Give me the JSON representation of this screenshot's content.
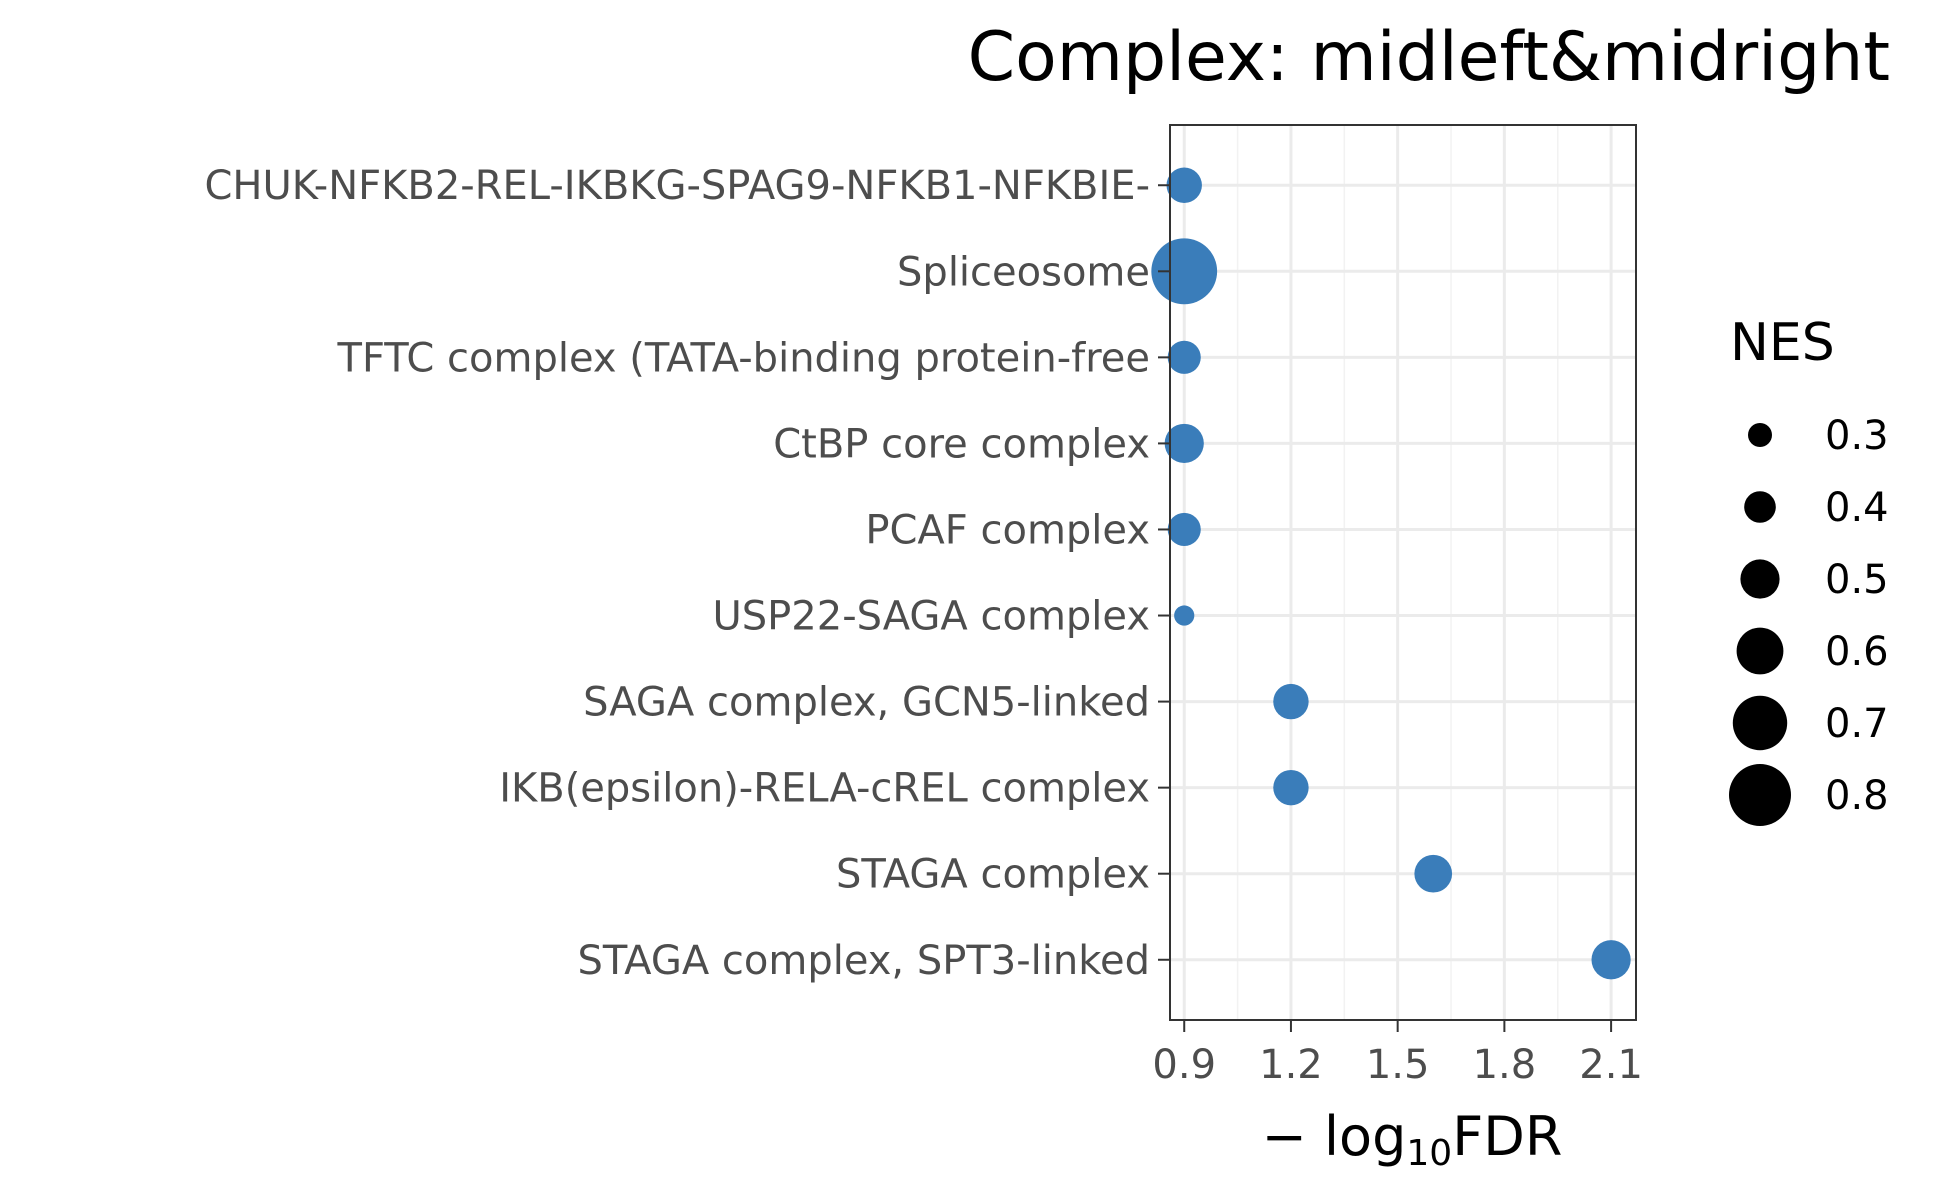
{
  "chart_data": {
    "type": "scatter",
    "title": "Complex: midleft&midright",
    "xlabel": {
      "prefix": "− log",
      "subscript": "10",
      "suffix": "FDR"
    },
    "ylabel": "",
    "xlim": [
      0.86,
      2.17
    ],
    "x_ticks": [
      0.9,
      1.2,
      1.5,
      1.8,
      2.1
    ],
    "x_tick_labels": [
      "0.9",
      "1.2",
      "1.5",
      "1.8",
      "2.1"
    ],
    "grid": true,
    "point_color": "#3A7DBA",
    "categories": [
      "CHUK-NFKB2-REL-IKBKG-SPAG9-NFKB1-NFKBIE-",
      "Spliceosome",
      "TFTC complex (TATA-binding protein-free ",
      "CtBP core complex",
      "PCAF complex",
      "USP22-SAGA complex",
      "SAGA complex, GCN5-linked",
      "IKB(epsilon)-RELA-cREL complex",
      "STAGA complex",
      "STAGA complex, SPT3-linked"
    ],
    "x": [
      0.9,
      0.9,
      0.9,
      0.9,
      0.9,
      0.9,
      1.2,
      1.2,
      1.6,
      2.1
    ],
    "size": [
      0.45,
      0.85,
      0.42,
      0.5,
      0.42,
      0.25,
      0.45,
      0.45,
      0.48,
      0.5
    ],
    "size_legend": {
      "title": "NES",
      "values": [
        0.3,
        0.4,
        0.5,
        0.6,
        0.7,
        0.8
      ],
      "labels": [
        "0.3",
        "0.4",
        "0.5",
        "0.6",
        "0.7",
        "0.8"
      ],
      "color": "#000000",
      "position": "right"
    }
  }
}
